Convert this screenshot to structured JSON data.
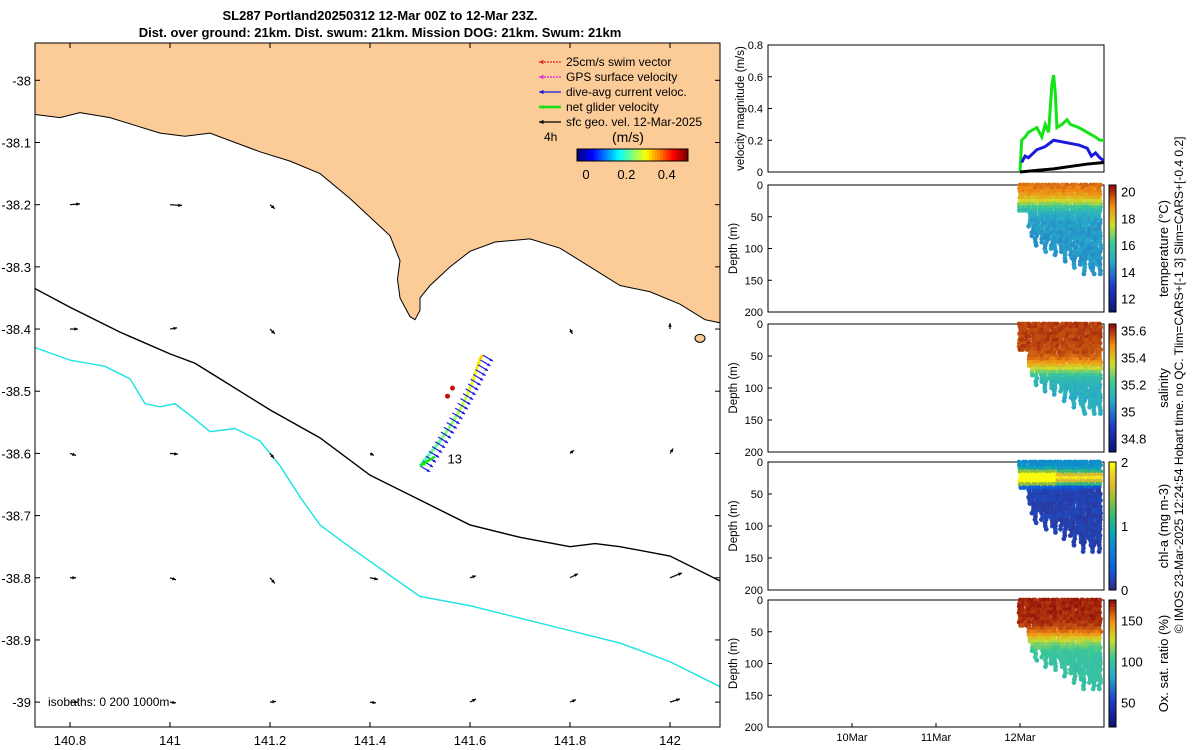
{
  "title_line1": "SL287 Portland20250312 12-Mar 00Z to 12-Mar 23Z.",
  "title_line2": "Dist. over ground: 21km. Dist. swum: 21km. Mission DOG: 21km. Swum: 21km",
  "side_note": "© IMOS 23-Mar-2025 12:24:54 Hobart time. no QC. Tlim=CARS+[-1 3] Slim=CARS+[-0.4 0.2]",
  "chart_data": [
    {
      "type": "map",
      "name": "glider track map",
      "x_ticks": [
        140.8,
        141,
        141.2,
        141.4,
        141.6,
        141.8,
        142
      ],
      "y_ticks": [
        -38,
        -38.1,
        -38.2,
        -38.3,
        -38.4,
        -38.5,
        -38.6,
        -38.7,
        -38.8,
        -38.9,
        -39
      ],
      "xlim": [
        140.73,
        142.1
      ],
      "ylim": [
        -39.04,
        -37.94
      ],
      "legend": [
        {
          "label": "25cm/s swim vector",
          "color": "#e8231c"
        },
        {
          "label": "GPS surface velocity",
          "color": "#e020e0"
        },
        {
          "label": "dive-avg current veloc.",
          "color": "#1a1adb"
        },
        {
          "label": "net glider velocity",
          "color": "#16e316"
        },
        {
          "label": "sfc geo. vel. 12-Mar-2025",
          "color": "#000000"
        }
      ],
      "scale_label": "4h",
      "colorbar": {
        "label": "(m/s)",
        "ticks": [
          0,
          0.2,
          0.4
        ],
        "range": [
          0,
          0.55
        ]
      },
      "isobath_label": "isobaths: 0   200  1000m",
      "track_label": "13",
      "track": [
        [
          141.5,
          -38.62
        ],
        [
          141.52,
          -38.6
        ],
        [
          141.545,
          -38.575
        ],
        [
          141.565,
          -38.55
        ],
        [
          141.58,
          -38.53
        ],
        [
          141.595,
          -38.505
        ],
        [
          141.605,
          -38.485
        ],
        [
          141.613,
          -38.465
        ],
        [
          141.62,
          -38.448
        ],
        [
          141.625,
          -38.442
        ]
      ],
      "isobath_200m": [
        [
          140.73,
          -38.335
        ],
        [
          140.8,
          -38.365
        ],
        [
          140.9,
          -38.405
        ],
        [
          141.0,
          -38.44
        ],
        [
          141.05,
          -38.455
        ],
        [
          141.1,
          -38.48
        ],
        [
          141.2,
          -38.53
        ],
        [
          141.3,
          -38.575
        ],
        [
          141.4,
          -38.635
        ],
        [
          141.5,
          -38.675
        ],
        [
          141.6,
          -38.715
        ],
        [
          141.7,
          -38.735
        ],
        [
          141.8,
          -38.75
        ],
        [
          141.85,
          -38.745
        ],
        [
          141.9,
          -38.75
        ],
        [
          142.0,
          -38.765
        ],
        [
          142.1,
          -38.805
        ]
      ],
      "isobath_1000m": [
        [
          140.73,
          -38.43
        ],
        [
          140.8,
          -38.45
        ],
        [
          140.87,
          -38.46
        ],
        [
          140.92,
          -38.48
        ],
        [
          140.95,
          -38.52
        ],
        [
          140.98,
          -38.525
        ],
        [
          141.01,
          -38.52
        ],
        [
          141.05,
          -38.545
        ],
        [
          141.08,
          -38.565
        ],
        [
          141.13,
          -38.56
        ],
        [
          141.18,
          -38.58
        ],
        [
          141.22,
          -38.62
        ],
        [
          141.26,
          -38.67
        ],
        [
          141.3,
          -38.715
        ],
        [
          141.35,
          -38.745
        ],
        [
          141.42,
          -38.785
        ],
        [
          141.5,
          -38.83
        ],
        [
          141.6,
          -38.845
        ],
        [
          141.7,
          -38.865
        ],
        [
          141.8,
          -38.885
        ],
        [
          141.9,
          -38.905
        ],
        [
          142.0,
          -38.935
        ],
        [
          142.1,
          -38.975
        ]
      ],
      "vectors": [
        {
          "lon": 140.8,
          "lat": -38.2,
          "u": 0.25,
          "v": 0.02
        },
        {
          "lon": 141.0,
          "lat": -38.2,
          "u": 0.3,
          "v": -0.02
        },
        {
          "lon": 141.2,
          "lat": -38.2,
          "u": 0.12,
          "v": -0.1
        },
        {
          "lon": 140.8,
          "lat": -38.4,
          "u": 0.2,
          "v": 0
        },
        {
          "lon": 141.0,
          "lat": -38.4,
          "u": 0.18,
          "v": 0.03
        },
        {
          "lon": 141.2,
          "lat": -38.4,
          "u": 0.12,
          "v": -0.12
        },
        {
          "lon": 141.8,
          "lat": -38.4,
          "u": 0.06,
          "v": -0.12
        },
        {
          "lon": 142.0,
          "lat": -38.4,
          "u": 0.0,
          "v": 0.15
        },
        {
          "lon": 140.8,
          "lat": -38.6,
          "u": 0.15,
          "v": -0.05
        },
        {
          "lon": 141.0,
          "lat": -38.6,
          "u": 0.2,
          "v": -0.02
        },
        {
          "lon": 141.2,
          "lat": -38.6,
          "u": 0.1,
          "v": -0.12
        },
        {
          "lon": 141.4,
          "lat": -38.6,
          "u": 0.1,
          "v": -0.05
        },
        {
          "lon": 141.8,
          "lat": -38.6,
          "u": 0.1,
          "v": 0.08
        },
        {
          "lon": 142.0,
          "lat": -38.6,
          "u": 0.08,
          "v": 0.12
        },
        {
          "lon": 140.8,
          "lat": -38.8,
          "u": 0.15,
          "v": 0
        },
        {
          "lon": 141.0,
          "lat": -38.8,
          "u": 0.15,
          "v": -0.05
        },
        {
          "lon": 141.2,
          "lat": -38.8,
          "u": 0.12,
          "v": -0.14
        },
        {
          "lon": 141.4,
          "lat": -38.8,
          "u": 0.2,
          "v": -0.04
        },
        {
          "lon": 141.6,
          "lat": -38.8,
          "u": 0.15,
          "v": 0.05
        },
        {
          "lon": 141.8,
          "lat": -38.8,
          "u": 0.2,
          "v": 0.1
        },
        {
          "lon": 142.0,
          "lat": -38.8,
          "u": 0.3,
          "v": 0.12
        },
        {
          "lon": 140.8,
          "lat": -39.0,
          "u": 0.2,
          "v": 0
        },
        {
          "lon": 141.0,
          "lat": -39.0,
          "u": 0.15,
          "v": -0.02
        },
        {
          "lon": 141.2,
          "lat": -39.0,
          "u": 0.15,
          "v": 0.02
        },
        {
          "lon": 141.4,
          "lat": -39.0,
          "u": 0.15,
          "v": -0.02
        },
        {
          "lon": 141.6,
          "lat": -39.0,
          "u": 0.15,
          "v": 0.08
        },
        {
          "lon": 141.8,
          "lat": -39.0,
          "u": 0.15,
          "v": 0.06
        },
        {
          "lon": 142.0,
          "lat": -39.0,
          "u": 0.25,
          "v": 0.08
        }
      ],
      "coast": [
        [
          140.73,
          -38.055
        ],
        [
          140.78,
          -38.06
        ],
        [
          140.82,
          -38.052
        ],
        [
          140.88,
          -38.06
        ],
        [
          140.94,
          -38.075
        ],
        [
          140.98,
          -38.085
        ],
        [
          141.03,
          -38.09
        ],
        [
          141.08,
          -38.085
        ],
        [
          141.13,
          -38.1
        ],
        [
          141.18,
          -38.115
        ],
        [
          141.24,
          -38.13
        ],
        [
          141.3,
          -38.15
        ],
        [
          141.36,
          -38.19
        ],
        [
          141.4,
          -38.22
        ],
        [
          141.44,
          -38.25
        ],
        [
          141.46,
          -38.29
        ],
        [
          141.455,
          -38.32
        ],
        [
          141.46,
          -38.35
        ],
        [
          141.48,
          -38.38
        ],
        [
          141.49,
          -38.385
        ],
        [
          141.5,
          -38.37
        ],
        [
          141.5,
          -38.35
        ],
        [
          141.52,
          -38.33
        ],
        [
          141.56,
          -38.3
        ],
        [
          141.6,
          -38.275
        ],
        [
          141.65,
          -38.26
        ],
        [
          141.72,
          -38.255
        ],
        [
          141.78,
          -38.27
        ],
        [
          141.84,
          -38.3
        ],
        [
          141.9,
          -38.33
        ],
        [
          141.96,
          -38.34
        ],
        [
          142.02,
          -38.36
        ],
        [
          142.07,
          -38.385
        ],
        [
          142.1,
          -38.39
        ],
        [
          142.1,
          -37.94
        ],
        [
          140.73,
          -37.94
        ]
      ]
    },
    {
      "type": "line",
      "name": "velocity magnitude",
      "ylabel": "velocity magnitude (m/s)",
      "yticks": [
        0,
        0.2,
        0.4,
        0.6,
        0.8
      ],
      "ylim": [
        0,
        0.8
      ],
      "series": [
        {
          "name": "net glider velocity",
          "color": "#16e316",
          "x": [
            12.0,
            12.02,
            12.06,
            12.1,
            12.2,
            12.26,
            12.3,
            12.34,
            12.38,
            12.4,
            12.42,
            12.44,
            12.5,
            12.56,
            12.6,
            12.7,
            12.8,
            12.9,
            12.95,
            13.0
          ],
          "y": [
            0.0,
            0.2,
            0.22,
            0.25,
            0.28,
            0.22,
            0.3,
            0.25,
            0.55,
            0.61,
            0.5,
            0.28,
            0.3,
            0.33,
            0.3,
            0.28,
            0.25,
            0.22,
            0.2,
            0.2
          ]
        },
        {
          "name": "dive-avg current",
          "color": "#1a1adb",
          "x": [
            12.02,
            12.06,
            12.1,
            12.2,
            12.3,
            12.4,
            12.5,
            12.6,
            12.7,
            12.8,
            12.85,
            12.9,
            12.95,
            13.0
          ],
          "y": [
            0.06,
            0.1,
            0.09,
            0.14,
            0.16,
            0.2,
            0.19,
            0.18,
            0.17,
            0.15,
            0.1,
            0.12,
            0.09,
            0.07
          ]
        },
        {
          "name": "sfc geo. velocity",
          "color": "#000000",
          "x": [
            12.0,
            12.2,
            12.4,
            12.6,
            12.8,
            13.0
          ],
          "y": [
            0.0,
            0.01,
            0.02,
            0.035,
            0.05,
            0.06
          ]
        }
      ]
    },
    {
      "type": "scatter",
      "name": "temperature",
      "ylabel": "Depth (m)",
      "cblabel": "temperature (°C)",
      "cbticks": [
        12,
        14,
        16,
        18,
        20
      ],
      "cblim": [
        11,
        20.5
      ],
      "surface": 19.5,
      "deep": 14.5,
      "thermocline": 30
    },
    {
      "type": "scatter",
      "name": "salinity",
      "ylabel": "Depth (m)",
      "cblabel": "salinity",
      "cbticks": [
        34.8,
        35,
        35.2,
        35.4,
        35.6
      ],
      "cblim": [
        34.7,
        35.65
      ],
      "surface": 35.6,
      "deep": 35.1,
      "thermocline": 70
    },
    {
      "type": "scatter",
      "name": "chlorophyll",
      "ylabel": "Depth (m)",
      "cblabel": "chl-a (mg m-3)",
      "cbticks": [
        0,
        1,
        2
      ],
      "cblim": [
        0,
        2
      ],
      "surface": 0.7,
      "deep": 0.0,
      "thermocline": 35
    },
    {
      "type": "scatter",
      "name": "oxygen",
      "ylabel": "Depth (m)",
      "cblabel": "Ox. sat. ratio (%)",
      "cbticks": [
        50,
        100,
        150
      ],
      "cblim": [
        20,
        175
      ],
      "surface": 172,
      "deep": 100,
      "thermocline": 60
    }
  ],
  "profile_depth_ticks": [
    0,
    50,
    100,
    150,
    200
  ],
  "time_ticks": [
    "10Mar",
    "11Mar",
    "12Mar"
  ]
}
